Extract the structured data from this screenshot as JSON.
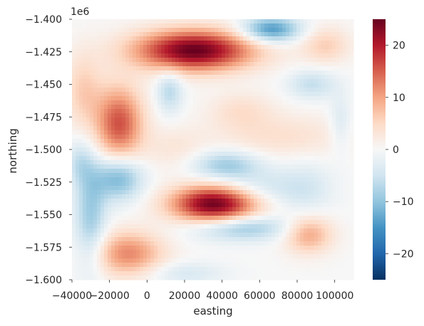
{
  "chart_data": {
    "type": "heatmap",
    "title": "",
    "xlabel": "easting",
    "ylabel": "northing",
    "y_offset_label": "1e6",
    "xlim": [
      -40000,
      110000
    ],
    "ylim": [
      -1.6,
      -1.4
    ],
    "x_ticks": [
      -40000,
      -20000,
      0,
      20000,
      40000,
      60000,
      80000,
      100000
    ],
    "x_tick_labels": [
      "−40000",
      "−20000",
      "0",
      "20000",
      "40000",
      "60000",
      "80000",
      "100000"
    ],
    "y_ticks": [
      -1.6,
      -1.575,
      -1.55,
      -1.525,
      -1.5,
      -1.475,
      -1.45,
      -1.425,
      -1.4
    ],
    "y_tick_labels": [
      "−1.600",
      "−1.575",
      "−1.550",
      "−1.525",
      "−1.500",
      "−1.475",
      "−1.450",
      "−1.425",
      "−1.400"
    ],
    "colorbar": {
      "colormap": "RdBu_r",
      "vmin": -25,
      "vmax": 25,
      "ticks": [
        -20,
        -10,
        0,
        10,
        20
      ],
      "tick_labels": [
        "−20",
        "−10",
        "0",
        "10",
        "20"
      ]
    },
    "grid": false,
    "features": [
      {
        "x": 25000,
        "y": -1.424,
        "value": 25,
        "sx": 22000,
        "sy": 0.011
      },
      {
        "x": 36000,
        "y": -1.542,
        "value": 25,
        "sx": 16000,
        "sy": 0.01
      },
      {
        "x": -15000,
        "y": -1.48,
        "value": 16,
        "sx": 9000,
        "sy": 0.02
      },
      {
        "x": -10000,
        "y": -1.58,
        "value": 12,
        "sx": 13000,
        "sy": 0.012
      },
      {
        "x": 86000,
        "y": -1.565,
        "value": 10,
        "sx": 9000,
        "sy": 0.01
      },
      {
        "x": 95000,
        "y": -1.42,
        "value": 6,
        "sx": 9000,
        "sy": 0.01
      },
      {
        "x": -34000,
        "y": -1.455,
        "value": 6,
        "sx": 7000,
        "sy": 0.02
      },
      {
        "x": 72000,
        "y": -1.49,
        "value": 4,
        "sx": 25000,
        "sy": 0.012
      },
      {
        "x": 50000,
        "y": -1.47,
        "value": 4,
        "sx": 12000,
        "sy": 0.01
      },
      {
        "x": 66000,
        "y": -1.408,
        "value": -15,
        "sx": 11000,
        "sy": 0.007
      },
      {
        "x": -15000,
        "y": -1.522,
        "value": -12,
        "sx": 9000,
        "sy": 0.012
      },
      {
        "x": -30000,
        "y": -1.55,
        "value": -9,
        "sx": 6000,
        "sy": 0.03
      },
      {
        "x": 42000,
        "y": -1.512,
        "value": -9,
        "sx": 13000,
        "sy": 0.008
      },
      {
        "x": 50000,
        "y": -1.56,
        "value": -10,
        "sx": 18000,
        "sy": 0.007
      },
      {
        "x": 60000,
        "y": -1.53,
        "value": -5,
        "sx": 15000,
        "sy": 0.01
      },
      {
        "x": 12000,
        "y": -1.455,
        "value": -7,
        "sx": 5000,
        "sy": 0.012
      },
      {
        "x": 88000,
        "y": -1.45,
        "value": -6,
        "sx": 9000,
        "sy": 0.008
      },
      {
        "x": 85000,
        "y": -1.53,
        "value": -4,
        "sx": 10000,
        "sy": 0.015
      },
      {
        "x": -36000,
        "y": -1.51,
        "value": -5,
        "sx": 5000,
        "sy": 0.012
      },
      {
        "x": 103000,
        "y": -1.48,
        "value": -4,
        "sx": 4000,
        "sy": 0.015
      },
      {
        "x": 15000,
        "y": -1.5,
        "value": 3,
        "sx": 12000,
        "sy": 0.012
      },
      {
        "x": 20000,
        "y": -1.595,
        "value": -4,
        "sx": 15000,
        "sy": 0.006
      }
    ]
  }
}
